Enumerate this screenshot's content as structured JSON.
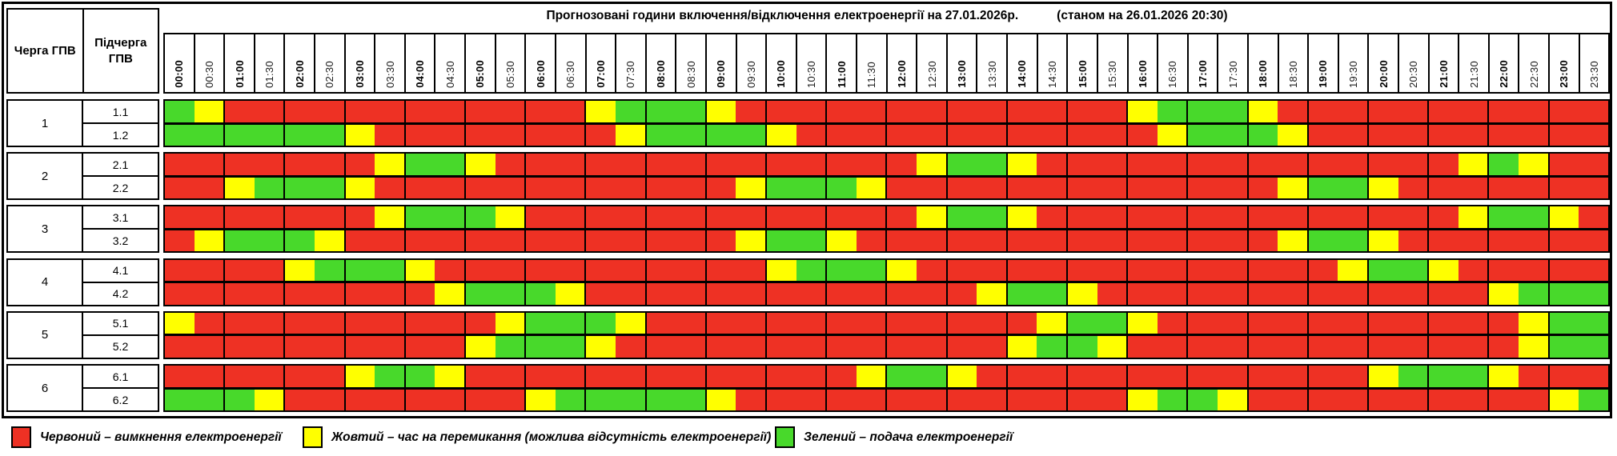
{
  "title": {
    "main": "Прогнозовані години включення/відключення електроенергії на 27.01.2026р.",
    "asof": "(станом на 26.01.2026 20:30)"
  },
  "headers": {
    "queue": "Черга ГПВ",
    "subqueue": "Підчерга ГПВ"
  },
  "times": [
    "00:00",
    "00:30",
    "01:00",
    "01:30",
    "02:00",
    "02:30",
    "03:00",
    "03:30",
    "04:00",
    "04:30",
    "05:00",
    "05:30",
    "06:00",
    "06:30",
    "07:00",
    "07:30",
    "08:00",
    "08:30",
    "09:00",
    "09:30",
    "10:00",
    "10:30",
    "11:00",
    "11:30",
    "12:00",
    "12:30",
    "13:00",
    "13:30",
    "14:00",
    "14:30",
    "15:00",
    "15:30",
    "16:00",
    "16:30",
    "17:00",
    "17:30",
    "18:00",
    "18:30",
    "19:00",
    "19:30",
    "20:00",
    "20:30",
    "21:00",
    "21:30",
    "22:00",
    "22:30",
    "23:00",
    "23:30"
  ],
  "colors": {
    "red": "#ee3124",
    "yellow": "#ffff00",
    "green": "#48d92b"
  },
  "legend": [
    {
      "color": "red",
      "label": "Червоний – вимкнення електроенергії"
    },
    {
      "color": "yellow",
      "label": "Жовтий – час на перемикання (можлива відсутність електроенергії)"
    },
    {
      "color": "green",
      "label": "Зелений – подача електроенергії"
    }
  ],
  "groups": [
    {
      "queue": "1",
      "rows": [
        {
          "label": "1.1",
          "slots": "GYRRRRRRRRRRRRYGGGYRRRRRRRRRRRRRYGGGYRRRRRRRRRRR"
        },
        {
          "label": "1.2",
          "slots": "GGGGGGYRRRRRRRRYGGGGYRRRRRRRRRRRRYGGGYRRRRRRRRRR"
        }
      ]
    },
    {
      "queue": "2",
      "rows": [
        {
          "label": "2.1",
          "slots": "RRRRRRRYGGYRRRRRRRRRRRRRRYGGYRRRRRRRRRRRRRRYGYRR"
        },
        {
          "label": "2.2",
          "slots": "RRYGGGYRRRRRRRRRRRRYGGGYRRRRRRRRRRRRRYGGYRRRRRRR"
        }
      ]
    },
    {
      "queue": "3",
      "rows": [
        {
          "label": "3.1",
          "slots": "RRRRRRRYGGGYRRRRRRRRRRRRRYGGYRRRRRRRRRRRRRRYGGYR"
        },
        {
          "label": "3.2",
          "slots": "RYGGGYRRRRRRRRRRRRRYGGYRRRRRRRRRRRRRRYGGYRRRRRRR"
        }
      ]
    },
    {
      "queue": "4",
      "rows": [
        {
          "label": "4.1",
          "slots": "RRRRYGGGYRRRRRRRRRRRYGGGYRRRRRRRRRRRRRRYGGYRRRRR"
        },
        {
          "label": "4.2",
          "slots": "RRRRRRRRRYGGGYRRRRRRRRRRRRRYGGYRRRRRRRRRRRRRYGGG"
        }
      ]
    },
    {
      "queue": "5",
      "rows": [
        {
          "label": "5.1",
          "slots": "YRRRRRRRRRRYGGGYRRRRRRRRRRRRRYGGYRRRRRRRRRRRRYGG"
        },
        {
          "label": "5.2",
          "slots": "RRRRRRRRRRYGGGYRRRRRRRRRRRRRYGGYRRRRRRRRRRRRRYGG"
        }
      ]
    },
    {
      "queue": "6",
      "rows": [
        {
          "label": "6.1",
          "slots": "RRRRRRYGGYRRRRRRRRRRRRRYGGYRRRRRRRRRRRRRYGGGYRRR"
        },
        {
          "label": "6.2",
          "slots": "GGGYRRRRRRRRYGGGGGYRRRRRRRRRRRRRYGGYRRRRRRRRRRYG"
        }
      ]
    }
  ]
}
